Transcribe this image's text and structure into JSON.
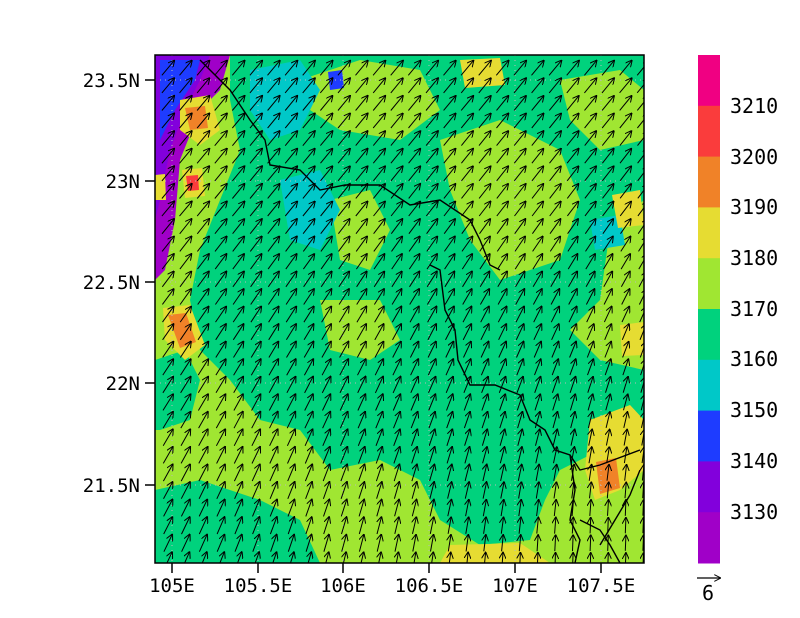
{
  "map": {
    "x_ticks": [
      "105E",
      "105.5E",
      "106E",
      "106.5E",
      "107E",
      "107.5E"
    ],
    "y_ticks": [
      "23.5N",
      "23N",
      "22.5N",
      "22N",
      "21.5N"
    ],
    "lon_range": [
      104.95,
      107.8
    ],
    "lat_range": [
      21.1,
      23.65
    ],
    "x_tick_values": [
      105.0,
      105.5,
      106.0,
      106.5,
      107.0,
      107.5
    ],
    "y_tick_values": [
      23.5,
      23.0,
      22.5,
      22.0,
      21.5
    ],
    "colors": {
      "background_field": "#a0e632",
      "lighter_field": "#a0e632",
      "mid_field": "#00d27d",
      "teal": "#00c8c8",
      "blue": "#1e3cff",
      "purple": "#8200dc",
      "violet": "#a000c8",
      "yellow": "#e6dc32",
      "orange": "#f08228",
      "red": "#fa3c3c",
      "magenta": "#f00082"
    }
  },
  "colorbar": {
    "labels": [
      "3210",
      "3200",
      "3190",
      "3180",
      "3170",
      "3160",
      "3150",
      "3140",
      "3130"
    ],
    "colors": [
      "#f00082",
      "#fa3c3c",
      "#f08228",
      "#e6dc32",
      "#a0e632",
      "#00d27d",
      "#00c8c8",
      "#1e3cff",
      "#8200dc",
      "#a000c8"
    ]
  },
  "vector_ref": {
    "label": "6"
  }
}
